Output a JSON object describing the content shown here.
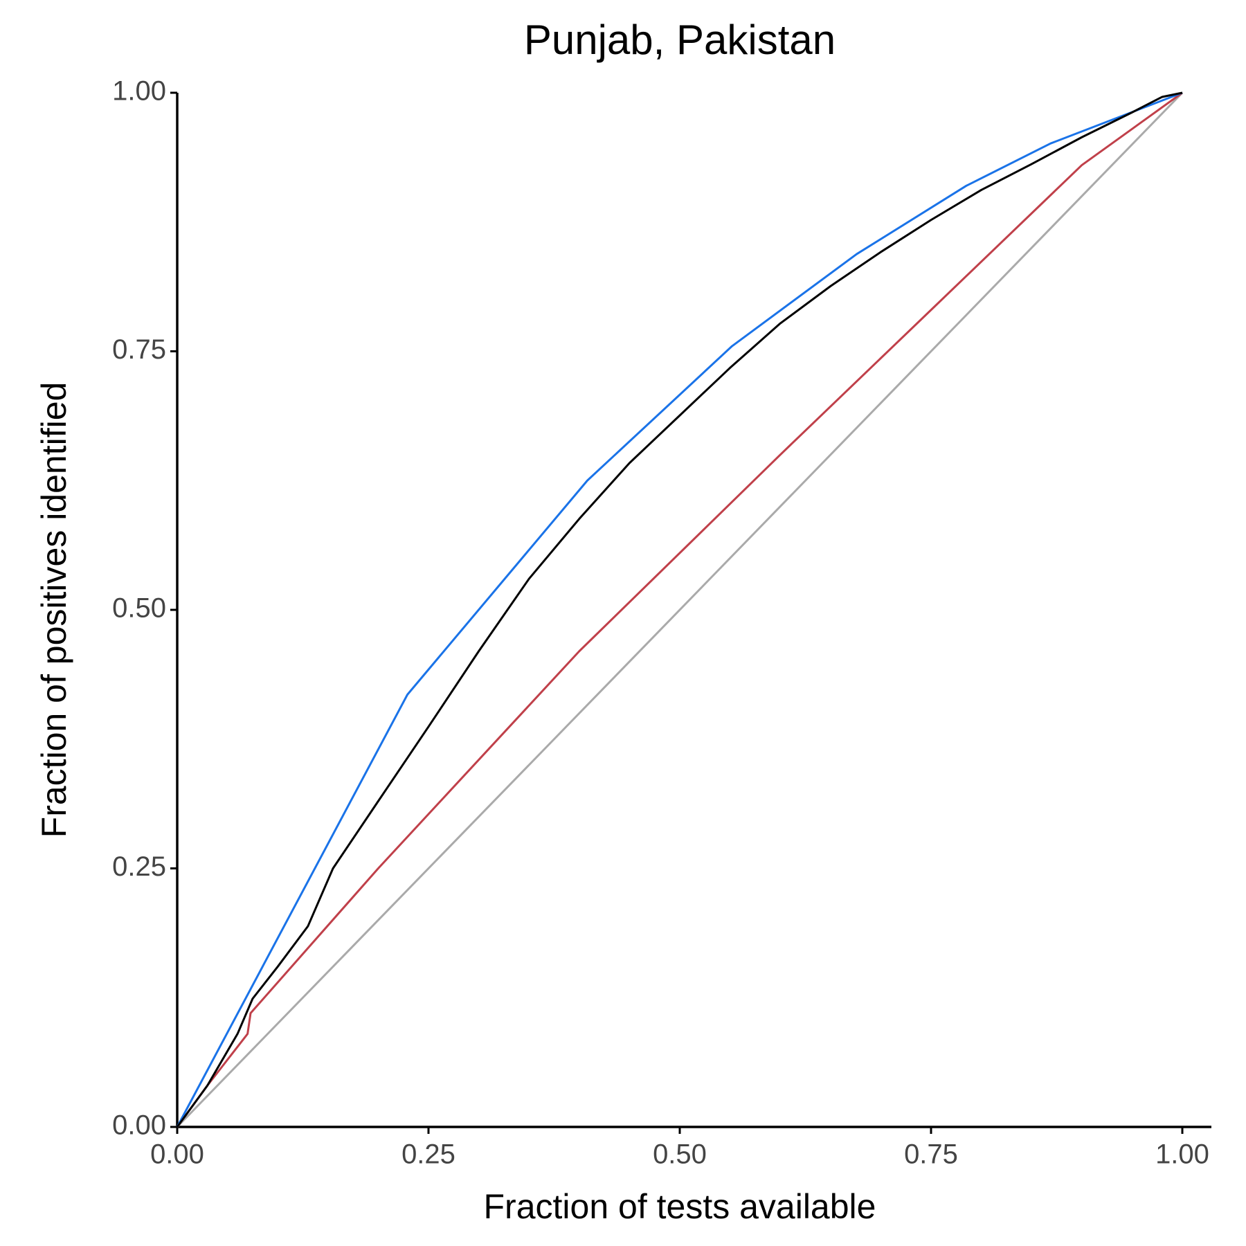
{
  "chart_data": {
    "type": "line",
    "title": "Punjab, Pakistan",
    "x_label": "Fraction of tests available",
    "y_label": "Fraction of positives identified",
    "xlim": [
      0,
      1
    ],
    "ylim": [
      0,
      1
    ],
    "xticks": [
      {
        "value": 0,
        "label": "0.00"
      },
      {
        "value": 0.25,
        "label": "0.25"
      },
      {
        "value": 0.5,
        "label": "0.50"
      },
      {
        "value": 0.75,
        "label": "0.75"
      },
      {
        "value": 1,
        "label": "1.00"
      }
    ],
    "yticks": [
      {
        "value": 0,
        "label": "0.00"
      },
      {
        "value": 0.25,
        "label": "0.25"
      },
      {
        "value": 0.5,
        "label": "0.50"
      },
      {
        "value": 0.75,
        "label": "0.75"
      },
      {
        "value": 1,
        "label": "1.00"
      }
    ],
    "grid": false,
    "series": [
      {
        "color": "#aaaaaa",
        "x": [
          0,
          1
        ],
        "values": [
          0,
          1
        ]
      },
      {
        "color": "#c0404a",
        "x": [
          0,
          0.03,
          0.05,
          0.07,
          0.073,
          0.2,
          0.4,
          0.6,
          0.75,
          0.9,
          0.95,
          1
        ],
        "values": [
          0,
          0.04,
          0.065,
          0.09,
          0.11,
          0.25,
          0.46,
          0.65,
          0.79,
          0.93,
          0.965,
          1
        ]
      },
      {
        "color": "#1a73e8",
        "x": [
          0,
          0.229,
          0.408,
          0.552,
          0.676,
          0.785,
          0.869,
          1
        ],
        "values": [
          0,
          0.418,
          0.625,
          0.755,
          0.844,
          0.91,
          0.951,
          1
        ]
      },
      {
        "color": "#000000",
        "x": [
          0,
          0.03,
          0.06,
          0.075,
          0.1,
          0.13,
          0.155,
          0.2,
          0.25,
          0.3,
          0.35,
          0.4,
          0.45,
          0.5,
          0.55,
          0.6,
          0.65,
          0.7,
          0.75,
          0.8,
          0.85,
          0.9,
          0.95,
          0.98,
          1
        ],
        "values": [
          0,
          0.04,
          0.09,
          0.124,
          0.155,
          0.194,
          0.25,
          0.315,
          0.387,
          0.46,
          0.53,
          0.588,
          0.642,
          0.688,
          0.734,
          0.777,
          0.813,
          0.846,
          0.877,
          0.906,
          0.931,
          0.957,
          0.981,
          0.996,
          1
        ]
      }
    ]
  }
}
